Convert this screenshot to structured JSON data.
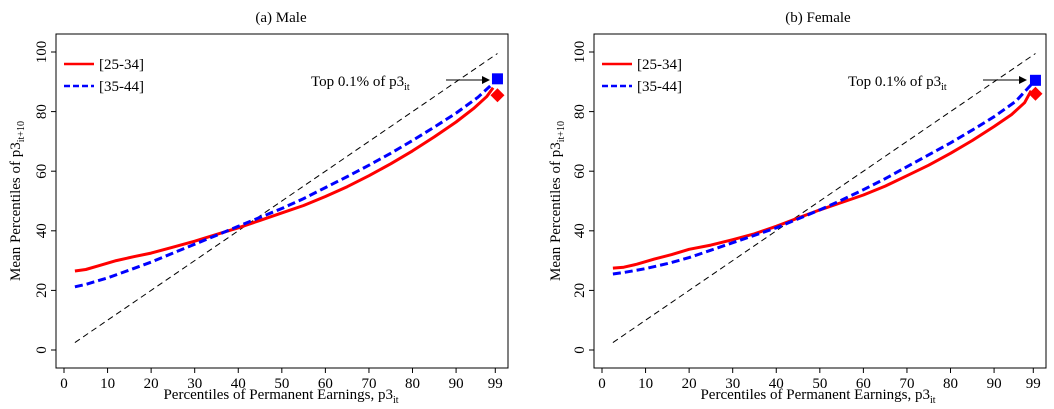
{
  "chart_data": [
    {
      "type": "line",
      "title": "(a) Male",
      "xlabel": "Percentiles of Permanent Earnings, p3",
      "xlabel_sub": "it",
      "ylabel": "Mean Percentiles of p3",
      "ylabel_sub": "it+10",
      "xlim": [
        0,
        101
      ],
      "ylim": [
        0,
        100
      ],
      "xticks": [
        0,
        10,
        20,
        30,
        40,
        50,
        60,
        70,
        80,
        90,
        99
      ],
      "yticks": [
        0,
        20,
        40,
        60,
        80,
        100
      ],
      "grid": false,
      "legend_position": "top-left",
      "annotation": {
        "text": "Top 0.1% of p3",
        "sub": "it",
        "points_to": [
          99,
          90
        ]
      },
      "reference_line": {
        "style": "dashed",
        "color": "#000000",
        "x": [
          2.5,
          99.5
        ],
        "y": [
          2.5,
          99.5
        ]
      },
      "series": [
        {
          "name": "[25-34]",
          "color": "#ff0000",
          "style": "solid",
          "x": [
            2.5,
            5,
            8,
            12,
            16,
            20,
            25,
            30,
            35,
            40,
            45,
            50,
            55,
            60,
            65,
            70,
            75,
            80,
            85,
            90,
            94,
            97,
            98.5
          ],
          "y": [
            26.5,
            27,
            28.3,
            30,
            31.3,
            32.5,
            34.5,
            36.5,
            38.8,
            41,
            43.5,
            46,
            48.5,
            51.5,
            54.8,
            58.5,
            62.5,
            66.8,
            71.5,
            76.5,
            81,
            85,
            88
          ],
          "top_marker": {
            "shape": "diamond",
            "x": 99.5,
            "y": 85.5
          }
        },
        {
          "name": "[35-44]",
          "color": "#0000ff",
          "style": "dashed",
          "x": [
            2.5,
            5,
            10,
            15,
            20,
            25,
            30,
            35,
            40,
            45,
            50,
            55,
            60,
            65,
            70,
            75,
            80,
            85,
            90,
            95,
            98.5
          ],
          "y": [
            21.2,
            22,
            24.2,
            26.8,
            29.5,
            32.5,
            35.5,
            38.5,
            41.5,
            44.5,
            47.5,
            50.8,
            54.5,
            58.2,
            62,
            66,
            70.3,
            74.8,
            79.5,
            84.8,
            89.5
          ],
          "top_marker": {
            "shape": "square",
            "x": 99.5,
            "y": 91
          }
        }
      ]
    },
    {
      "type": "line",
      "title": "(b) Female",
      "xlabel": "Percentiles of Permanent Earnings, p3",
      "xlabel_sub": "it",
      "ylabel": "Mean Percentiles of p3",
      "ylabel_sub": "it+10",
      "xlim": [
        0,
        101
      ],
      "ylim": [
        0,
        100
      ],
      "xticks": [
        0,
        10,
        20,
        30,
        40,
        50,
        60,
        70,
        80,
        90,
        99
      ],
      "yticks": [
        0,
        20,
        40,
        60,
        80,
        100
      ],
      "grid": false,
      "legend_position": "top-left",
      "annotation": {
        "text": "Top 0.1% of p3",
        "sub": "it",
        "points_to": [
          99,
          90
        ]
      },
      "reference_line": {
        "style": "dashed",
        "color": "#000000",
        "x": [
          2.5,
          99.5
        ],
        "y": [
          2.5,
          99.5
        ]
      },
      "series": [
        {
          "name": "[25-34]",
          "color": "#ff0000",
          "style": "solid",
          "x": [
            2.5,
            5,
            8,
            12,
            16,
            20,
            25,
            30,
            35,
            40,
            45,
            50,
            55,
            60,
            65,
            70,
            75,
            80,
            85,
            90,
            94,
            97,
            98.5
          ],
          "y": [
            27.5,
            27.8,
            28.8,
            30.5,
            32,
            33.8,
            35.2,
            37,
            39,
            41.5,
            44.3,
            47,
            49.5,
            52,
            55,
            58.5,
            62,
            66,
            70.3,
            75,
            79,
            83,
            87
          ],
          "top_marker": {
            "shape": "diamond",
            "x": 99.5,
            "y": 86
          }
        },
        {
          "name": "[35-44]",
          "color": "#0000ff",
          "style": "dashed",
          "x": [
            2.5,
            5,
            10,
            15,
            20,
            25,
            30,
            35,
            40,
            45,
            50,
            55,
            60,
            65,
            70,
            75,
            80,
            85,
            90,
            95,
            98.5
          ],
          "y": [
            25.5,
            26,
            27.3,
            29,
            31,
            33.5,
            36,
            38.5,
            41,
            44,
            47,
            50.3,
            53.8,
            57.5,
            61.5,
            65.5,
            69.5,
            73.8,
            78.3,
            83.5,
            89
          ],
          "top_marker": {
            "shape": "square",
            "x": 99.5,
            "y": 90.5
          }
        }
      ]
    }
  ]
}
